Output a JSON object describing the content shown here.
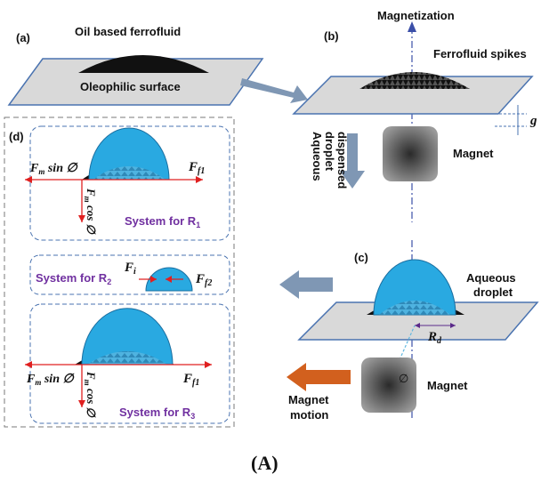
{
  "panel_labels": {
    "a": "(a)",
    "b": "(b)",
    "c": "(c)",
    "d": "(d)"
  },
  "panel_a": {
    "ferrofluid": "Oil based ferrofluid",
    "surface": "Oleophilic surface"
  },
  "panel_b": {
    "magnetization": "Magnetization",
    "spikes": "Ferrofluid spikes",
    "gap": "g",
    "magnet": "Magnet"
  },
  "transition_label": [
    "Aqueous",
    "droplet",
    "dispensed"
  ],
  "panel_c": {
    "droplet": [
      "Aqueous",
      "droplet"
    ],
    "radius": "R",
    "radius_sub": "d",
    "angle": "∅",
    "magnet": "Magnet",
    "motion": [
      "Magnet",
      "motion"
    ]
  },
  "panel_d": {
    "r1": {
      "fm_sin": "F",
      "fm_sin_sub": "m",
      "fm_sin_rest": " sin ∅",
      "fm_cos": "F",
      "fm_cos_sub": "m",
      "fm_cos_rest": " cos ∅",
      "ff": "F",
      "ff_sub": "f1",
      "system": "System for R",
      "system_sub": "1"
    },
    "r2": {
      "fi": "F",
      "fi_sub": "i",
      "ff": "F",
      "ff_sub": "f2",
      "system": "System for R",
      "system_sub": "2"
    },
    "r3": {
      "fm_sin": "F",
      "fm_sin_sub": "m",
      "fm_sin_rest": " sin ∅",
      "fm_cos": "F",
      "fm_cos_sub": "m",
      "fm_cos_rest": " cos ∅",
      "ff": "F",
      "ff_sub": "f1",
      "system": "System for R",
      "system_sub": "3"
    }
  },
  "caption": "(A)",
  "colors": {
    "droplet": "#29a9e1",
    "force_arrow": "#e02020",
    "block_arrow": "#7f97b4",
    "motion_arrow": "#d2601e",
    "system_text": "#7030a0",
    "plate": "#d9d9d9"
  }
}
